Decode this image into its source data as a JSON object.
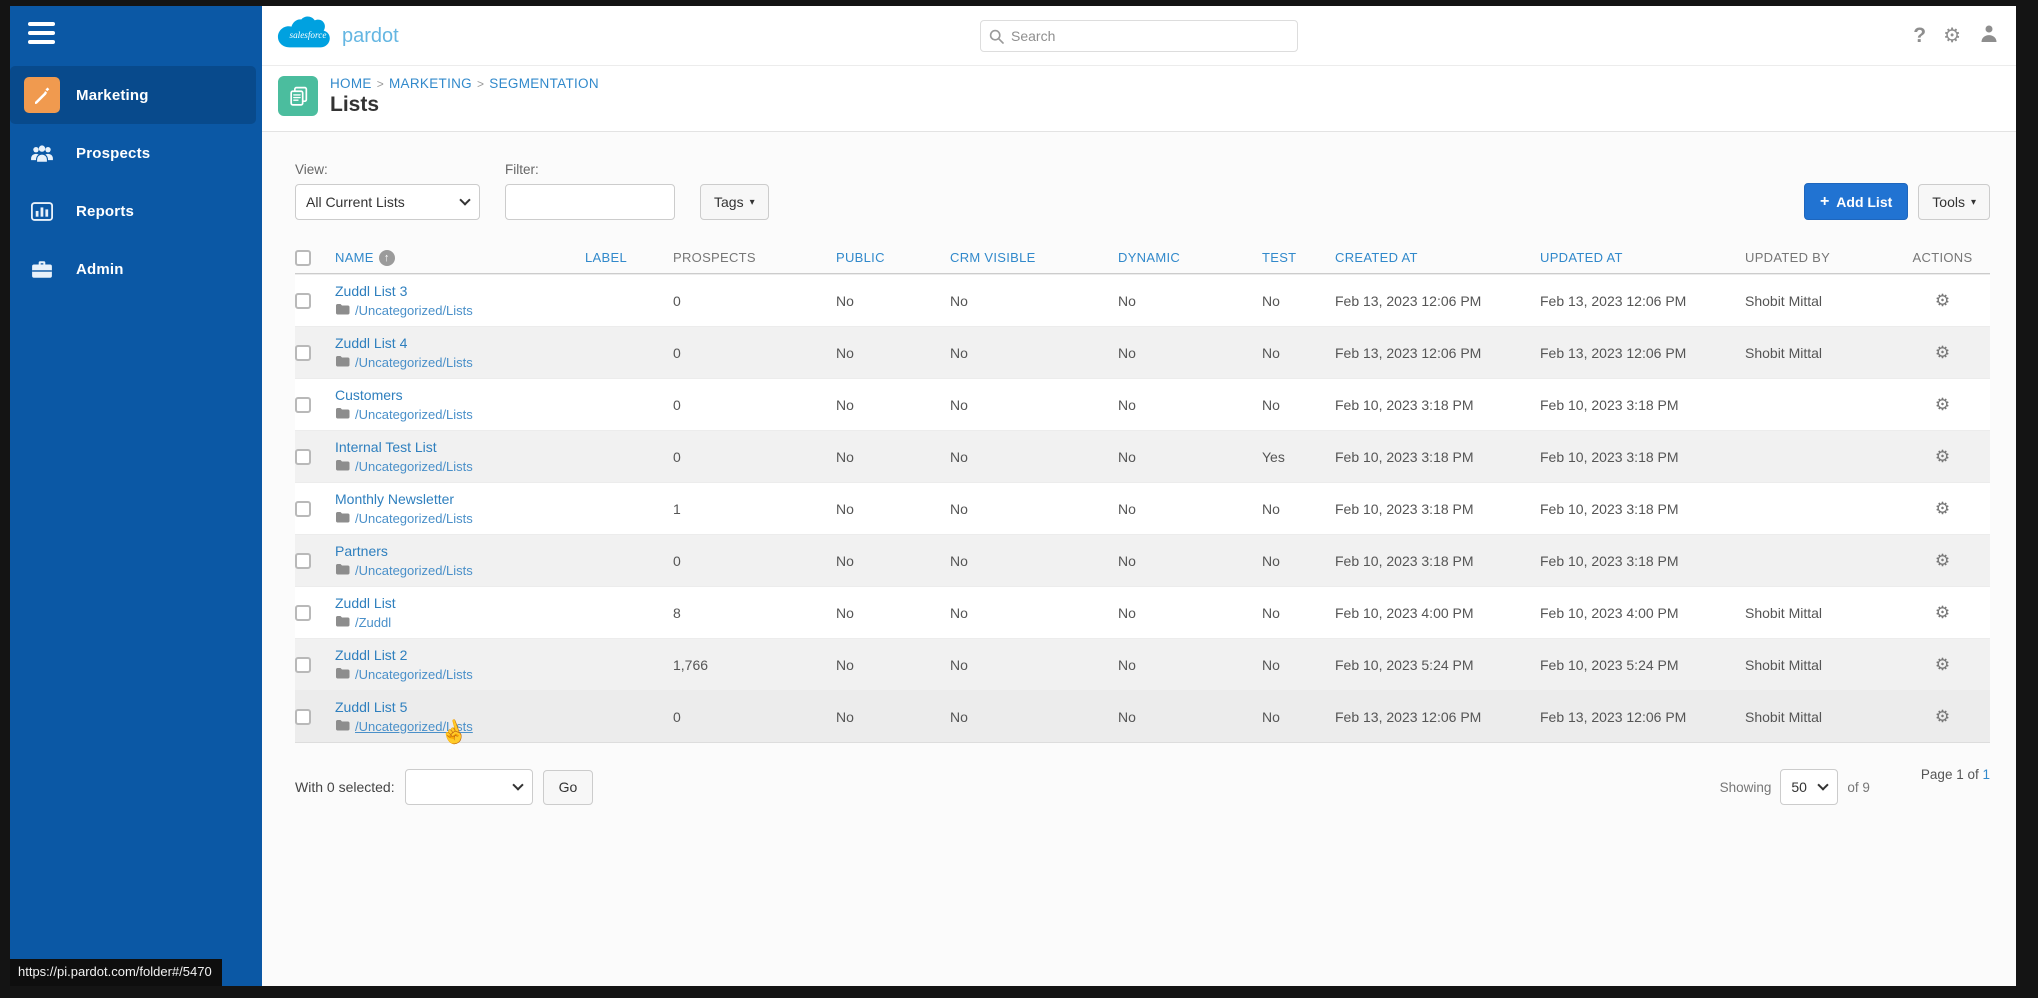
{
  "icons": {
    "caret_down": "▾",
    "plus": "+",
    "gear": "⚙",
    "help": "?",
    "sort_up": "↑",
    "pointer": "☝"
  },
  "topbar": {
    "brand_primary": "salesforce",
    "brand_secondary": "pardot",
    "search_placeholder": "Search"
  },
  "sidebar": {
    "items": [
      {
        "label": "Marketing"
      },
      {
        "label": "Prospects"
      },
      {
        "label": "Reports"
      },
      {
        "label": "Admin"
      }
    ]
  },
  "breadcrumb": {
    "separator": ">",
    "items": [
      "HOME",
      "MARKETING",
      "SEGMENTATION"
    ]
  },
  "page_title": "Lists",
  "filters": {
    "view_label": "View:",
    "view_value": "All Current Lists",
    "filter_label": "Filter:",
    "filter_value": "",
    "tags_label": "Tags",
    "add_list_label": "Add List",
    "tools_label": "Tools"
  },
  "table": {
    "columns": [
      {
        "key": "name",
        "label": "NAME",
        "sortable": true,
        "sorted": true
      },
      {
        "key": "label",
        "label": "LABEL",
        "sortable": true
      },
      {
        "key": "prospects",
        "label": "PROSPECTS",
        "sortable": false
      },
      {
        "key": "public",
        "label": "PUBLIC",
        "sortable": true
      },
      {
        "key": "crm_visible",
        "label": "CRM VISIBLE",
        "sortable": true
      },
      {
        "key": "dynamic",
        "label": "DYNAMIC",
        "sortable": true
      },
      {
        "key": "test",
        "label": "TEST",
        "sortable": true
      },
      {
        "key": "created_at",
        "label": "CREATED AT",
        "sortable": true
      },
      {
        "key": "updated_at",
        "label": "UPDATED AT",
        "sortable": true
      },
      {
        "key": "updated_by",
        "label": "UPDATED BY",
        "sortable": false
      },
      {
        "key": "actions",
        "label": "ACTIONS",
        "sortable": false
      }
    ],
    "rows": [
      {
        "name": "Zuddl List 3",
        "folder": "/Uncategorized/Lists",
        "label": "",
        "prospects": "0",
        "public": "No",
        "crm_visible": "No",
        "dynamic": "No",
        "test": "No",
        "created_at": "Feb 13, 2023 12:06 PM",
        "updated_at": "Feb 13, 2023 12:06 PM",
        "updated_by": "Shobit Mittal"
      },
      {
        "name": "Zuddl List 4",
        "folder": "/Uncategorized/Lists",
        "label": "",
        "prospects": "0",
        "public": "No",
        "crm_visible": "No",
        "dynamic": "No",
        "test": "No",
        "created_at": "Feb 13, 2023 12:06 PM",
        "updated_at": "Feb 13, 2023 12:06 PM",
        "updated_by": "Shobit Mittal"
      },
      {
        "name": "Customers",
        "folder": "/Uncategorized/Lists",
        "label": "",
        "prospects": "0",
        "public": "No",
        "crm_visible": "No",
        "dynamic": "No",
        "test": "No",
        "created_at": "Feb 10, 2023 3:18 PM",
        "updated_at": "Feb 10, 2023 3:18 PM",
        "updated_by": ""
      },
      {
        "name": "Internal Test List",
        "folder": "/Uncategorized/Lists",
        "label": "",
        "prospects": "0",
        "public": "No",
        "crm_visible": "No",
        "dynamic": "No",
        "test": "Yes",
        "created_at": "Feb 10, 2023 3:18 PM",
        "updated_at": "Feb 10, 2023 3:18 PM",
        "updated_by": ""
      },
      {
        "name": "Monthly Newsletter",
        "folder": "/Uncategorized/Lists",
        "label": "",
        "prospects": "1",
        "public": "No",
        "crm_visible": "No",
        "dynamic": "No",
        "test": "No",
        "created_at": "Feb 10, 2023 3:18 PM",
        "updated_at": "Feb 10, 2023 3:18 PM",
        "updated_by": ""
      },
      {
        "name": "Partners",
        "folder": "/Uncategorized/Lists",
        "label": "",
        "prospects": "0",
        "public": "No",
        "crm_visible": "No",
        "dynamic": "No",
        "test": "No",
        "created_at": "Feb 10, 2023 3:18 PM",
        "updated_at": "Feb 10, 2023 3:18 PM",
        "updated_by": ""
      },
      {
        "name": "Zuddl List",
        "folder": "/Zuddl",
        "label": "",
        "prospects": "8",
        "public": "No",
        "crm_visible": "No",
        "dynamic": "No",
        "test": "No",
        "created_at": "Feb 10, 2023 4:00 PM",
        "updated_at": "Feb 10, 2023 4:00 PM",
        "updated_by": "Shobit Mittal"
      },
      {
        "name": "Zuddl List 2",
        "folder": "/Uncategorized/Lists",
        "label": "",
        "prospects": "1,766",
        "public": "No",
        "crm_visible": "No",
        "dynamic": "No",
        "test": "No",
        "created_at": "Feb 10, 2023 5:24 PM",
        "updated_at": "Feb 10, 2023 5:24 PM",
        "updated_by": "Shobit Mittal"
      },
      {
        "name": "Zuddl List 5",
        "folder": "/Uncategorized/Lists",
        "label": "",
        "prospects": "0",
        "public": "No",
        "crm_visible": "No",
        "dynamic": "No",
        "test": "No",
        "created_at": "Feb 13, 2023 12:06 PM",
        "updated_at": "Feb 13, 2023 12:06 PM",
        "updated_by": "Shobit Mittal",
        "hover": true
      }
    ]
  },
  "footer": {
    "with_selected_label": "With 0 selected:",
    "go_label": "Go",
    "showing_label": "Showing",
    "page_size": "50",
    "of_total_label": "of 9",
    "page_prefix": "Page 1 of",
    "page_link": "1"
  },
  "statusbar": {
    "url": "https://pi.pardot.com/folder#/5470"
  }
}
